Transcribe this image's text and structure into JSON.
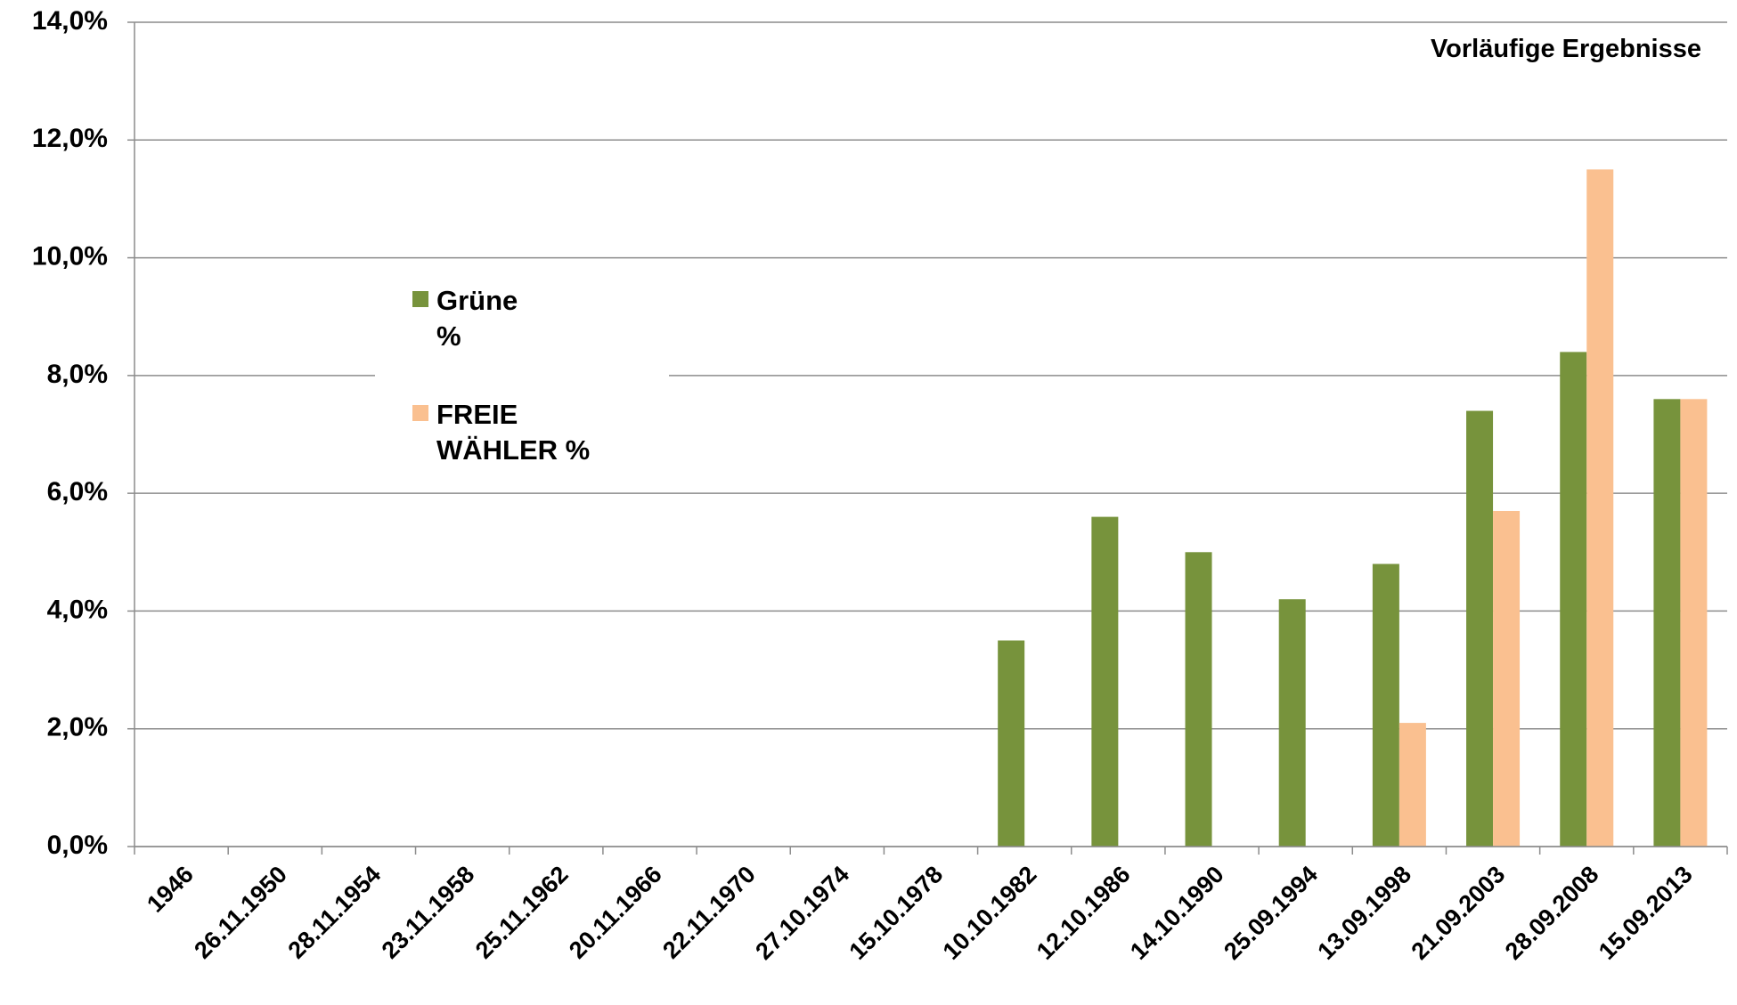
{
  "chart_data": {
    "type": "bar",
    "annotation": "Vorläufige Ergebnisse",
    "categories": [
      "1946",
      "26.11.1950",
      "28.11.1954",
      "23.11.1958",
      "25.11.1962",
      "20.11.1966",
      "22.11.1970",
      "27.10.1974",
      "15.10.1978",
      "10.10.1982",
      "12.10.1986",
      "14.10.1990",
      "25.09.1994",
      "13.09.1998",
      "21.09.2003",
      "28.09.2008",
      "15.09.2013"
    ],
    "series": [
      {
        "name": "Grüne %",
        "color": "#77933c",
        "values": [
          null,
          null,
          null,
          null,
          null,
          null,
          null,
          null,
          null,
          3.5,
          5.6,
          5.0,
          4.2,
          4.8,
          7.4,
          8.4,
          7.6
        ]
      },
      {
        "name": "FREIE WÄHLER %",
        "color": "#fac090",
        "values": [
          null,
          null,
          null,
          null,
          null,
          null,
          null,
          null,
          null,
          null,
          null,
          null,
          null,
          2.1,
          5.7,
          11.5,
          7.6
        ]
      }
    ],
    "ylim": [
      0,
      14
    ],
    "yticks": [
      {
        "value": 0,
        "label": "0,0%"
      },
      {
        "value": 2,
        "label": "2,0%"
      },
      {
        "value": 4,
        "label": "4,0%"
      },
      {
        "value": 6,
        "label": "6,0%"
      },
      {
        "value": 8,
        "label": "8,0%"
      },
      {
        "value": 10,
        "label": "10,0%"
      },
      {
        "value": 12,
        "label": "12,0%"
      },
      {
        "value": 14,
        "label": "14,0%"
      }
    ],
    "grid": true,
    "legend": "left"
  }
}
